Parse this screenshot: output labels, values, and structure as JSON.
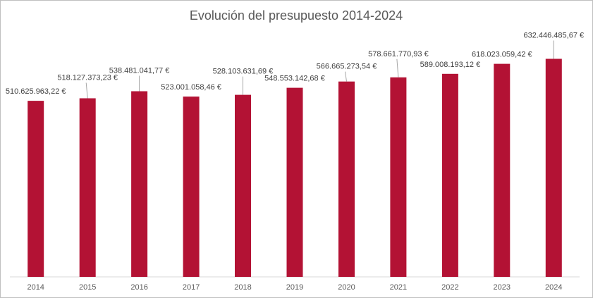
{
  "chart_data": {
    "type": "bar",
    "title": "Evolución del presupuesto 2014-2024",
    "xlabel": "",
    "ylabel": "",
    "ylim": [
      0,
      750000000
    ],
    "grid": false,
    "legend": "none",
    "bar_color": "#B31234",
    "categories": [
      "2014",
      "2015",
      "2016",
      "2017",
      "2018",
      "2019",
      "2020",
      "2021",
      "2022",
      "2023",
      "2024"
    ],
    "values": [
      510625963.22,
      518127373.23,
      538481041.77,
      523001058.46,
      528103631.69,
      548553142.68,
      566665273.54,
      578661770.93,
      589008193.12,
      618023059.42,
      632446485.67
    ],
    "data_labels": [
      "510.625.963,22 €",
      "518.127.373,23 €",
      "538.481.041,77 €",
      "523.001.058,46 €",
      "528.103.631,69 €",
      "548.553.142,68 €",
      "566.665.273,54 €",
      "578.661.770,93 €",
      "589.008.193,12 €",
      "618.023.059,42 €",
      "632.446.485,67 €"
    ]
  }
}
